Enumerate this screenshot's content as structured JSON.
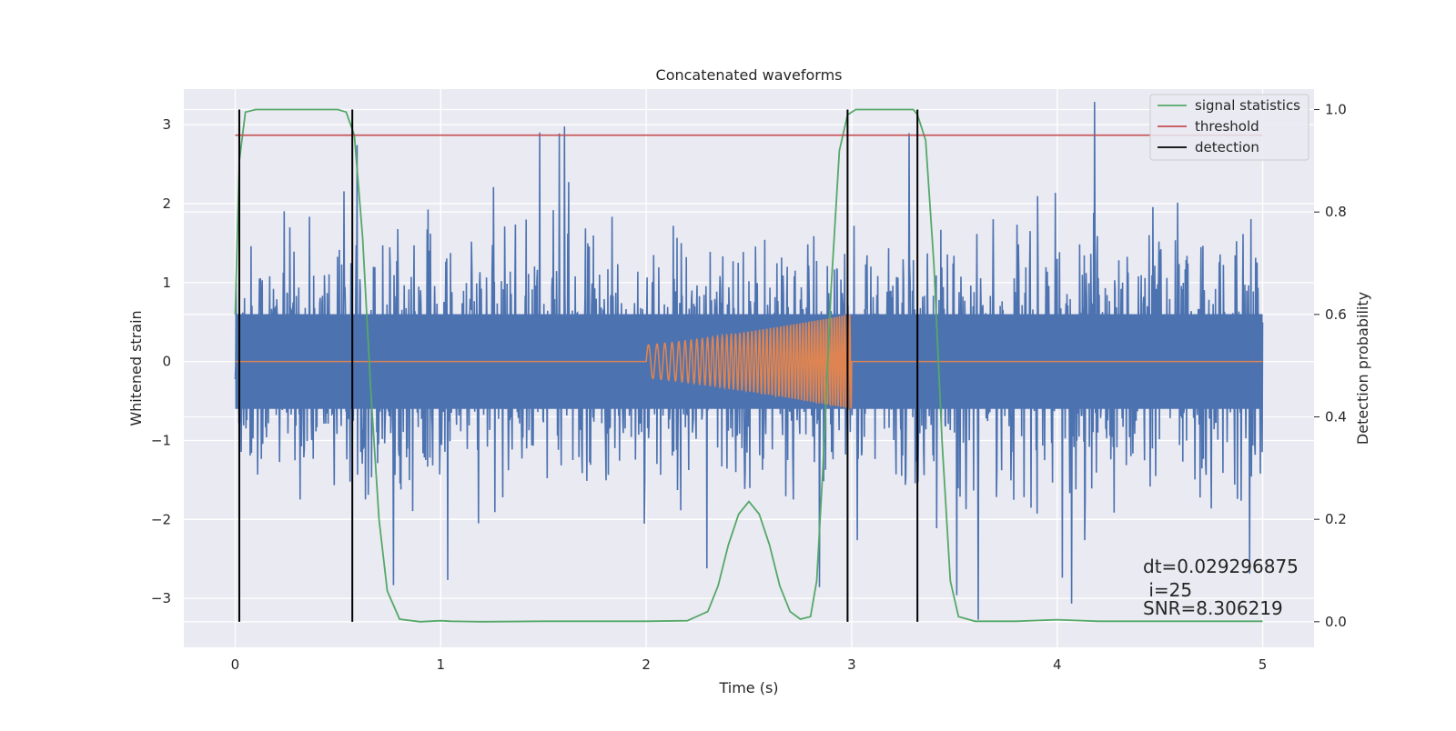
{
  "chart_data": {
    "type": "line",
    "title": "Concatenated waveforms",
    "xlabel": "Time (s)",
    "ylabel": "Whitened strain",
    "y2label": "Detection probability",
    "xlim": [
      -0.25,
      5.25
    ],
    "ylim": [
      -3.62,
      3.45
    ],
    "y2lim": [
      -0.05,
      1.04
    ],
    "x_ticks": [
      0,
      1,
      2,
      3,
      4,
      5
    ],
    "x_tick_labels": [
      "0",
      "1",
      "2",
      "3",
      "4",
      "5"
    ],
    "y_ticks": [
      3,
      2,
      1,
      0,
      -1,
      -2,
      -3
    ],
    "y_tick_labels": [
      "3",
      "2",
      "1",
      "0",
      "−1",
      "−2",
      "−3"
    ],
    "y2_ticks": [
      1.0,
      0.8,
      0.6,
      0.4,
      0.2,
      0.0
    ],
    "y2_tick_labels": [
      "1.0",
      "0.8",
      "0.6",
      "0.4",
      "0.2",
      "0.0"
    ],
    "grid": true,
    "legend_position": "top-right",
    "series": [
      {
        "kind": "noise",
        "color": "#4c72b0",
        "x_range": [
          0,
          5
        ],
        "typical_peak_abs": 2.3,
        "max": 3.35,
        "min": -3.3
      },
      {
        "kind": "chirp",
        "color": "#dd8452",
        "x_range": [
          0,
          5
        ],
        "chirp_start": 2.0,
        "chirp_end": 3.0,
        "amp_start": 0.21,
        "amp_end": 0.6
      },
      {
        "name": "signal statistics",
        "axis": "right",
        "color": "#55a868",
        "x": [
          0.0,
          0.02,
          0.05,
          0.1,
          0.5,
          0.54,
          0.58,
          0.62,
          0.66,
          0.7,
          0.74,
          0.8,
          0.9,
          1.0,
          1.05,
          1.2,
          1.5,
          2.0,
          2.2,
          2.3,
          2.35,
          2.4,
          2.45,
          2.5,
          2.55,
          2.6,
          2.65,
          2.7,
          2.75,
          2.8,
          2.83,
          2.86,
          2.9,
          2.94,
          2.98,
          3.02,
          3.06,
          3.3,
          3.32,
          3.36,
          3.4,
          3.44,
          3.48,
          3.52,
          3.6,
          3.8,
          4.0,
          4.2,
          4.5,
          5.0
        ],
        "values": [
          0.6,
          0.9,
          0.995,
          1.0,
          1.0,
          0.995,
          0.95,
          0.75,
          0.45,
          0.2,
          0.06,
          0.005,
          0.0,
          0.002,
          0.001,
          0.0,
          0.001,
          0.001,
          0.002,
          0.02,
          0.07,
          0.15,
          0.21,
          0.235,
          0.21,
          0.15,
          0.07,
          0.02,
          0.005,
          0.01,
          0.08,
          0.3,
          0.65,
          0.92,
          0.99,
          1.0,
          1.0,
          1.0,
          0.99,
          0.94,
          0.7,
          0.35,
          0.08,
          0.01,
          0.001,
          0.001,
          0.004,
          0.001,
          0.001,
          0.001
        ]
      },
      {
        "name": "threshold",
        "axis": "right",
        "color": "#c44e52",
        "x": [
          0,
          5
        ],
        "values": [
          0.95,
          0.95
        ]
      },
      {
        "name": "detection",
        "axis": "right",
        "color": "#000000",
        "x": [
          0.02,
          0.57,
          2.98,
          3.32
        ],
        "y_range": [
          0.0,
          1.0
        ]
      }
    ],
    "legend": [
      "signal statistics",
      "threshold",
      "detection"
    ],
    "annotations": [
      "dt=0.029296875",
      " i=25",
      "SNR=8.306219"
    ]
  }
}
